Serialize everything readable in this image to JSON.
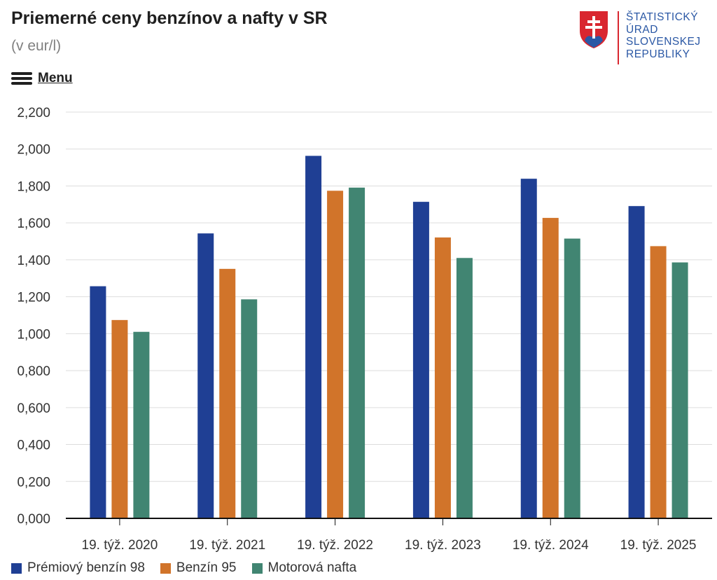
{
  "header": {
    "title": "Priemerné ceny benzínov a nafty v SR",
    "subtitle": "(v eur/l)",
    "menu_label": "Menu"
  },
  "logo": {
    "lines": [
      "ŠTATISTICKÝ",
      "ÚRAD",
      "SLOVENSKEJ",
      "REPUBLIKY"
    ]
  },
  "colors": {
    "series_1": "#1f3f94",
    "series_2": "#d1742a",
    "series_3": "#418572",
    "grid": "#dddddd",
    "axis": "#111111",
    "logo_blue": "#2b58a5",
    "logo_red": "#d9262f"
  },
  "chart_data": {
    "type": "bar",
    "categories": [
      "19. týž. 2020",
      "19. týž. 2021",
      "19. týž. 2022",
      "19. týž. 2023",
      "19. týž. 2024",
      "19. týž. 2025"
    ],
    "series": [
      {
        "name": "Prémiový benzín 98",
        "values": [
          1.257,
          1.543,
          1.963,
          1.714,
          1.839,
          1.691
        ]
      },
      {
        "name": "Benzín 95",
        "values": [
          1.074,
          1.351,
          1.774,
          1.521,
          1.627,
          1.474
        ]
      },
      {
        "name": "Motorová nafta",
        "values": [
          1.01,
          1.186,
          1.791,
          1.41,
          1.515,
          1.386
        ]
      }
    ],
    "y_ticks": [
      "0,000",
      "0,200",
      "0,400",
      "0,600",
      "0,800",
      "1,000",
      "1,200",
      "1,400",
      "1,600",
      "1,800",
      "2,000",
      "2,200"
    ],
    "ylim": [
      0,
      2.2
    ],
    "y_step": 0.2,
    "grid": true,
    "legend_position": "bottom-left"
  }
}
